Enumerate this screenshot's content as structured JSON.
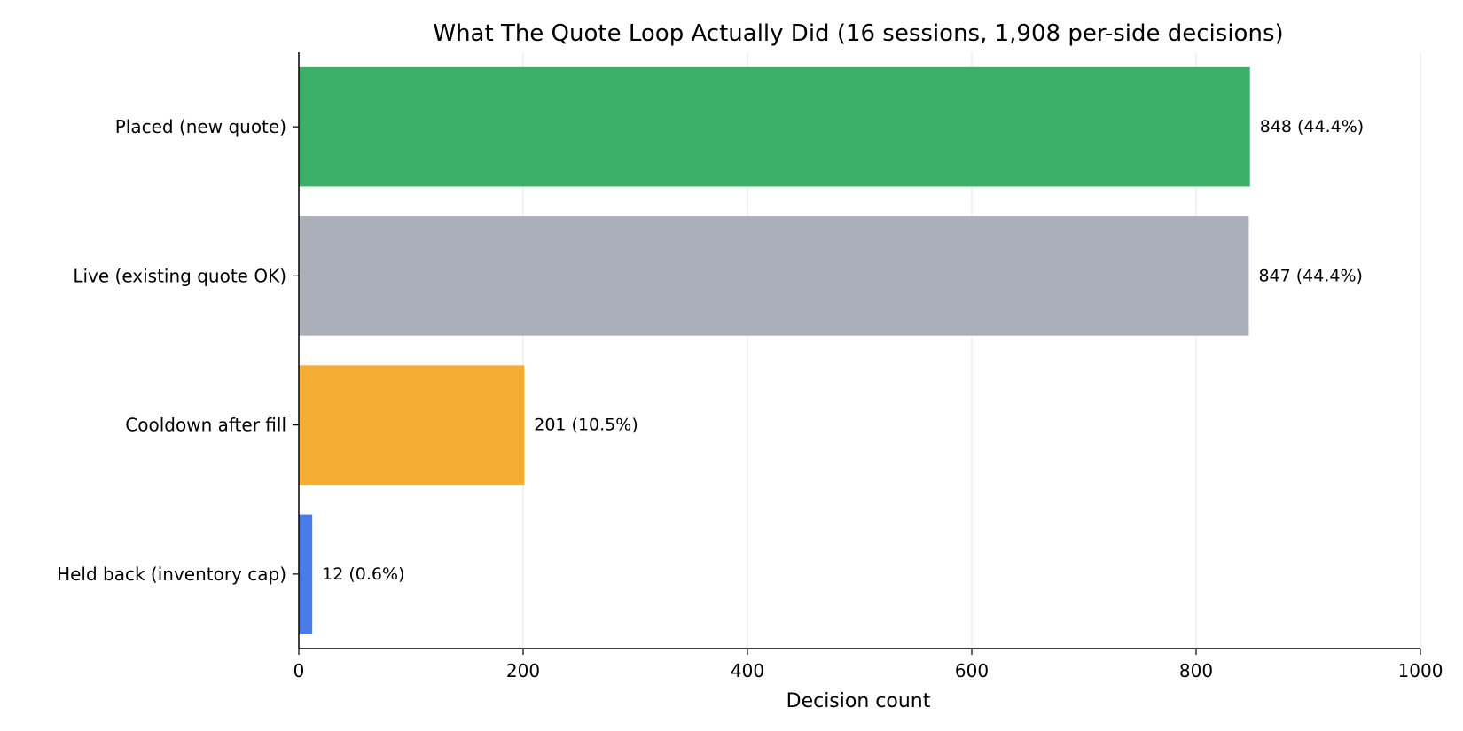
{
  "chart_data": {
    "type": "bar",
    "orientation": "horizontal",
    "title": "What The Quote Loop Actually Did (16 sessions, 1,908 per-side decisions)",
    "xlabel": "Decision count",
    "ylabel": "",
    "xlim": [
      0,
      1000
    ],
    "xticks": [
      0,
      200,
      400,
      600,
      800,
      1000
    ],
    "grid": "vertical",
    "categories": [
      "Placed (new quote)",
      "Live (existing quote OK)",
      "Cooldown after fill",
      "Held back (inventory cap)"
    ],
    "values": [
      848,
      847,
      201,
      12
    ],
    "value_labels": [
      "848  (44.4%)",
      "847  (44.4%)",
      "201  (10.5%)",
      "12  (0.6%)"
    ],
    "colors": [
      "#3cb066",
      "#abafb9",
      "#f5ac33",
      "#4a7be8"
    ]
  }
}
